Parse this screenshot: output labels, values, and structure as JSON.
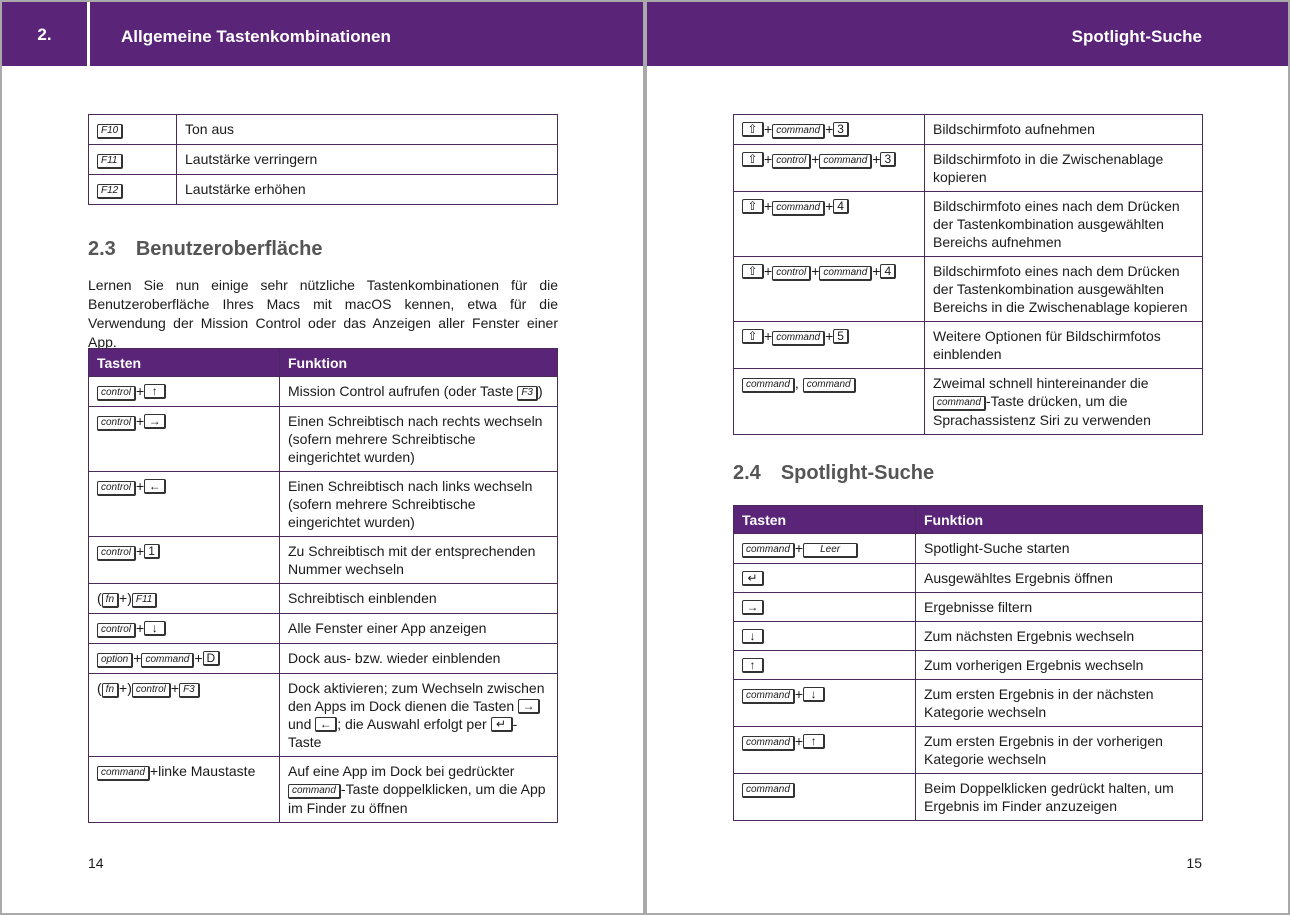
{
  "left": {
    "header": {
      "chapter": "2.",
      "title": "Allgemeine Tastenkombinationen"
    },
    "top_table": {
      "rows": [
        {
          "keys": [
            {
              "k": "F10"
            }
          ],
          "func": [
            {
              "t": "Ton aus"
            }
          ]
        },
        {
          "keys": [
            {
              "k": "F11"
            }
          ],
          "func": [
            {
              "t": "Lautstärke verringern"
            }
          ]
        },
        {
          "keys": [
            {
              "k": "F12"
            }
          ],
          "func": [
            {
              "t": "Lautstärke erhöhen"
            }
          ]
        }
      ]
    },
    "section": {
      "number": "2.3",
      "title": "Benutzeroberfläche"
    },
    "intro": "Lernen Sie nun einige sehr nützliche Tastenkombinationen für die Benutzeroberfläche Ihres Macs mit macOS kennen, etwa für die Verwendung der Mission Control oder das Anzeigen aller Fenster einer App.",
    "main_table": {
      "headers": [
        "Tasten",
        "Funktion"
      ],
      "rows": [
        {
          "keys": [
            {
              "k": "control"
            },
            {
              "t": "+"
            },
            {
              "k": "↑"
            }
          ],
          "func": [
            {
              "t": "Mission Control aufrufen (oder Taste "
            },
            {
              "k": "F3"
            },
            {
              "t": ")"
            }
          ]
        },
        {
          "keys": [
            {
              "k": "control"
            },
            {
              "t": "+"
            },
            {
              "k": "→"
            }
          ],
          "func": [
            {
              "t": "Einen Schreibtisch nach rechts wechseln (sofern mehrere Schreibtische eingerichtet wurden)"
            }
          ]
        },
        {
          "keys": [
            {
              "k": "control"
            },
            {
              "t": "+"
            },
            {
              "k": "←"
            }
          ],
          "func": [
            {
              "t": "Einen Schreibtisch nach links wechseln (sofern mehrere Schreibtische eingerichtet wurden)"
            }
          ]
        },
        {
          "keys": [
            {
              "k": "control"
            },
            {
              "t": "+"
            },
            {
              "k": "1"
            }
          ],
          "func": [
            {
              "t": "Zu Schreibtisch mit der entsprechenden Nummer wechseln"
            }
          ]
        },
        {
          "keys": [
            {
              "t": "("
            },
            {
              "k": "fn"
            },
            {
              "t": "+)"
            },
            {
              "k": "F11"
            }
          ],
          "func": [
            {
              "t": "Schreibtisch einblenden"
            }
          ]
        },
        {
          "keys": [
            {
              "k": "control"
            },
            {
              "t": "+"
            },
            {
              "k": "↓"
            }
          ],
          "func": [
            {
              "t": "Alle Fenster einer App anzeigen"
            }
          ]
        },
        {
          "keys": [
            {
              "k": "option"
            },
            {
              "t": "+"
            },
            {
              "k": "command"
            },
            {
              "t": "+"
            },
            {
              "k": "D"
            }
          ],
          "func": [
            {
              "t": "Dock aus- bzw. wieder einblenden"
            }
          ]
        },
        {
          "keys": [
            {
              "t": "("
            },
            {
              "k": "fn"
            },
            {
              "t": "+)"
            },
            {
              "k": "control"
            },
            {
              "t": "+"
            },
            {
              "k": "F3"
            }
          ],
          "func": [
            {
              "t": "Dock aktivieren; zum Wechseln zwischen den Apps im Dock dienen die Tasten "
            },
            {
              "k": "→"
            },
            {
              "t": " und "
            },
            {
              "k": "←"
            },
            {
              "t": "; die Auswahl erfolgt per "
            },
            {
              "k": "↵"
            },
            {
              "t": "-Taste"
            }
          ]
        },
        {
          "keys": [
            {
              "k": "command"
            },
            {
              "t": "+linke Maustaste"
            }
          ],
          "func": [
            {
              "t": "Auf eine App im Dock bei gedrückter "
            },
            {
              "k": "command"
            },
            {
              "t": "-Taste doppelklicken, um die App im Finder zu öffnen"
            }
          ]
        }
      ]
    },
    "page_number": "14"
  },
  "right": {
    "header": {
      "title": "Spotlight-Suche"
    },
    "top_table": {
      "rows": [
        {
          "keys": [
            {
              "k": "⇧"
            },
            {
              "t": "+"
            },
            {
              "k": "command"
            },
            {
              "t": "+"
            },
            {
              "k": "3"
            }
          ],
          "func": [
            {
              "t": "Bildschirmfoto aufnehmen"
            }
          ]
        },
        {
          "keys": [
            {
              "k": "⇧"
            },
            {
              "t": "+"
            },
            {
              "k": "control"
            },
            {
              "t": "+"
            },
            {
              "k": "command"
            },
            {
              "t": "+"
            },
            {
              "k": "3"
            }
          ],
          "func": [
            {
              "t": "Bildschirmfoto in die Zwischenablage kopieren"
            }
          ]
        },
        {
          "keys": [
            {
              "k": "⇧"
            },
            {
              "t": "+"
            },
            {
              "k": "command"
            },
            {
              "t": "+"
            },
            {
              "k": "4"
            }
          ],
          "func": [
            {
              "t": "Bildschirmfoto eines nach dem Drücken der Tastenkombination ausgewählten Bereichs aufnehmen"
            }
          ]
        },
        {
          "keys": [
            {
              "k": "⇧"
            },
            {
              "t": "+"
            },
            {
              "k": "control"
            },
            {
              "t": "+"
            },
            {
              "k": "command"
            },
            {
              "t": "+"
            },
            {
              "k": "4"
            }
          ],
          "func": [
            {
              "t": "Bildschirmfoto eines nach dem Drücken der Tastenkombination ausgewählten Bereichs in die Zwischenablage kopieren"
            }
          ]
        },
        {
          "keys": [
            {
              "k": "⇧"
            },
            {
              "t": "+"
            },
            {
              "k": "command"
            },
            {
              "t": "+"
            },
            {
              "k": "5"
            }
          ],
          "func": [
            {
              "t": "Weitere Optionen für Bildschirmfotos einblenden"
            }
          ]
        },
        {
          "keys": [
            {
              "k": "command"
            },
            {
              "t": ", "
            },
            {
              "k": "command"
            }
          ],
          "func": [
            {
              "t": "Zweimal schnell hintereinander die "
            },
            {
              "k": "command"
            },
            {
              "t": "-Taste drücken, um die Sprachassistenz Siri zu verwenden"
            }
          ]
        }
      ]
    },
    "section": {
      "number": "2.4",
      "title": "Spotlight-Suche"
    },
    "main_table": {
      "headers": [
        "Tasten",
        "Funktion"
      ],
      "rows": [
        {
          "keys": [
            {
              "k": "command"
            },
            {
              "t": "+"
            },
            {
              "k": "Leer"
            }
          ],
          "func": [
            {
              "t": "Spotlight-Suche starten"
            }
          ]
        },
        {
          "keys": [
            {
              "k": "↵"
            }
          ],
          "func": [
            {
              "t": "Ausgewähltes Ergebnis öffnen"
            }
          ]
        },
        {
          "keys": [
            {
              "k": "→"
            }
          ],
          "func": [
            {
              "t": "Ergebnisse filtern"
            }
          ]
        },
        {
          "keys": [
            {
              "k": "↓"
            }
          ],
          "func": [
            {
              "t": "Zum nächsten Ergebnis wechseln"
            }
          ]
        },
        {
          "keys": [
            {
              "k": "↑"
            }
          ],
          "func": [
            {
              "t": "Zum vorherigen Ergebnis wechseln"
            }
          ]
        },
        {
          "keys": [
            {
              "k": "command"
            },
            {
              "t": "+"
            },
            {
              "k": "↓"
            }
          ],
          "func": [
            {
              "t": "Zum ersten Ergebnis in der nächsten Kategorie wechseln"
            }
          ]
        },
        {
          "keys": [
            {
              "k": "command"
            },
            {
              "t": "+"
            },
            {
              "k": "↑"
            }
          ],
          "func": [
            {
              "t": "Zum ersten Ergebnis in der vorherigen Kategorie wechseln"
            }
          ]
        },
        {
          "keys": [
            {
              "k": "command"
            }
          ],
          "func": [
            {
              "t": "Beim Doppelklicken gedrückt halten, um Ergebnis im Finder anzuzeigen"
            }
          ]
        }
      ]
    },
    "page_number": "15"
  },
  "colors": {
    "accent": "#5a2479"
  }
}
